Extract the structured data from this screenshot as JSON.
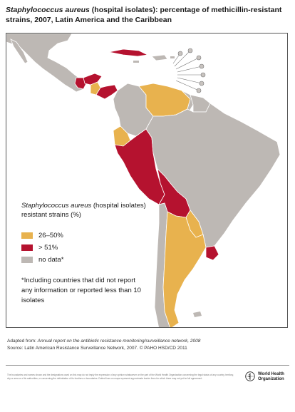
{
  "title": {
    "species": "Staphylococcus aureus",
    "rest": " (hospital isolates): percentage of methicillin-resistant strains, 2007, Latin America and the Caribbean"
  },
  "legend": {
    "species": "Staphylococcus aureus",
    "rest": " (hospital isolates) resistant strains (%)",
    "items": [
      {
        "label": "26–50%",
        "color": "#e8b24e"
      },
      {
        "label": "> 51%",
        "color": "#b5122f"
      },
      {
        "label": "no data*",
        "color": "#bdb8b4"
      }
    ],
    "note": "*Including countries that did not report any information or reported less than 10 isolates"
  },
  "credits": {
    "adapted_prefix": "Adapted from: ",
    "adapted_source": "Annual report on the antibiotic resistance monitoring/surveillance network, 2008",
    "source": "Source: Latin American Resistance Surveillance Network, 2007. © PAHO HSD/CD 2011"
  },
  "disclaimer": "The boundaries and names shown and the designations used on this map do not imply the expression of any opinion whatsoever on the part of the World Health Organization concerning the legal status of any country, territory, city or area or of its authorities, or concerning the delimitation of its frontiers or boundaries. Dotted lines on maps represent approximate border lines for which there may not yet be full agreement.",
  "organization": {
    "line1": "World Health",
    "line2": "Organization"
  },
  "colors": {
    "ocean": "#ffffff",
    "land": "#bdb8b4",
    "mid": "#e8b24e",
    "high": "#b5122f",
    "border": "#ffffff"
  }
}
